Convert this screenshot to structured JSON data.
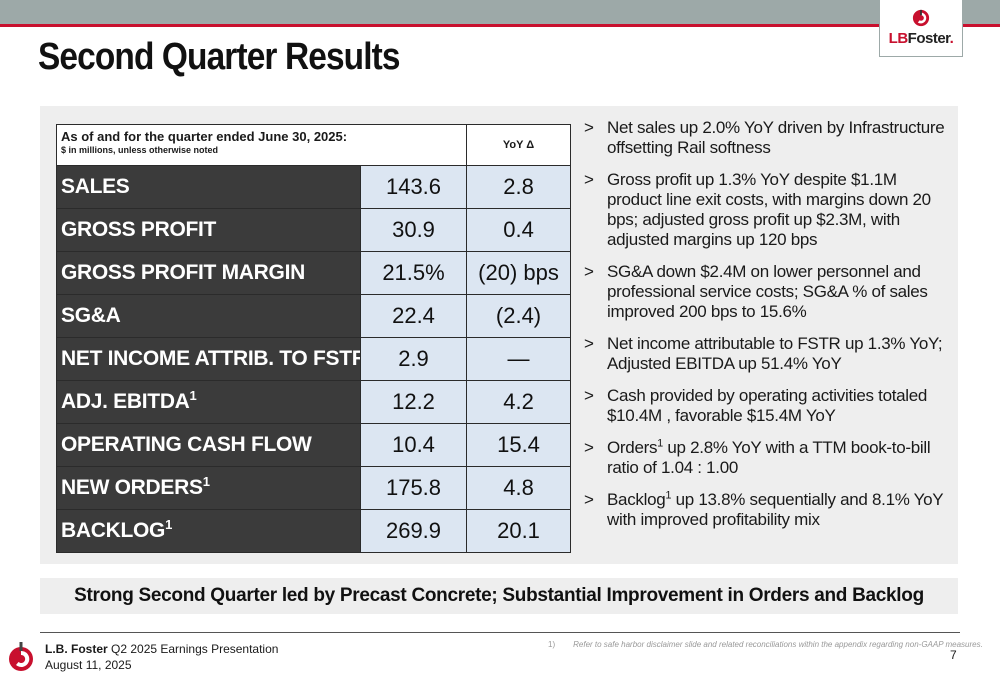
{
  "header": {
    "title": "Second Quarter Results",
    "logo": {
      "icon": "lb-foster-logo-icon",
      "text_lb": "LB",
      "text_rest": "Foster",
      "mark": "."
    }
  },
  "table": {
    "header_main": "As of and for the quarter ended June 30, 2025:",
    "header_sub": "$ in millions, unless otherwise noted",
    "header_yoy": "YoY Δ",
    "rows": [
      {
        "label": "SALES",
        "sup": "",
        "value": "143.6",
        "yoy": "2.8"
      },
      {
        "label": "GROSS PROFIT",
        "sup": "",
        "value": "30.9",
        "yoy": "0.4"
      },
      {
        "label": "GROSS PROFIT MARGIN",
        "sup": "",
        "value": "21.5%",
        "yoy": "(20) bps"
      },
      {
        "label": "SG&A",
        "sup": "",
        "value": "22.4",
        "yoy": "(2.4)"
      },
      {
        "label": "NET INCOME ATTRIB. TO FSTR",
        "sup": "",
        "value": "2.9",
        "yoy": "—"
      },
      {
        "label": "ADJ. EBITDA",
        "sup": "1",
        "value": "12.2",
        "yoy": "4.2"
      },
      {
        "label": "OPERATING CASH FLOW",
        "sup": "",
        "value": "10.4",
        "yoy": "15.4"
      },
      {
        "label": "NEW ORDERS",
        "sup": "1",
        "value": "175.8",
        "yoy": "4.8"
      },
      {
        "label": "BACKLOG",
        "sup": "1",
        "value": "269.9",
        "yoy": "20.1"
      }
    ]
  },
  "bullets": [
    {
      "pre": "Net sales up 2.0% YoY driven by Infrastructure offsetting Rail softness",
      "sup": "",
      "post": ""
    },
    {
      "pre": "Gross profit up 1.3% YoY despite $1.1M product line exit costs, with margins down 20 bps; adjusted gross profit up $2.3M, with adjusted margins up 120 bps",
      "sup": "",
      "post": ""
    },
    {
      "pre": "SG&A down $2.4M on lower personnel and professional service costs; SG&A % of sales improved 200 bps to 15.6%",
      "sup": "",
      "post": ""
    },
    {
      "pre": "Net income attributable to FSTR up 1.3% YoY; Adjusted EBITDA up 51.4% YoY",
      "sup": "",
      "post": ""
    },
    {
      "pre": "Cash provided by operating activities totaled $10.4M , favorable $15.4M YoY",
      "sup": "",
      "post": ""
    },
    {
      "pre": "Orders",
      "sup": "1",
      "post": " up 2.8% YoY with a TTM book-to-bill ratio of 1.04 : 1.00"
    },
    {
      "pre": "Backlog",
      "sup": "1",
      "post": " up 13.8% sequentially and 8.1% YoY with improved profitability mix"
    }
  ],
  "bullet_marker": ">",
  "banner": "Strong Second Quarter led by Precast Concrete; Substantial Improvement in Orders and Backlog",
  "footer": {
    "company": "L.B. Foster",
    "presentation": " Q2 2025 Earnings Presentation",
    "date": "August 11, 2025",
    "footnote_num": "1)",
    "footnote": "Refer to safe harbor disclaimer slide and related reconciliations within the appendix regarding non-GAAP measures.",
    "page": "7"
  },
  "colors": {
    "accent_red": "#c8102e",
    "topbar_gray": "#9da9a8",
    "label_dark": "#3b3b3b",
    "value_blue": "#dce6f2",
    "panel_gray": "#eeeeee"
  }
}
